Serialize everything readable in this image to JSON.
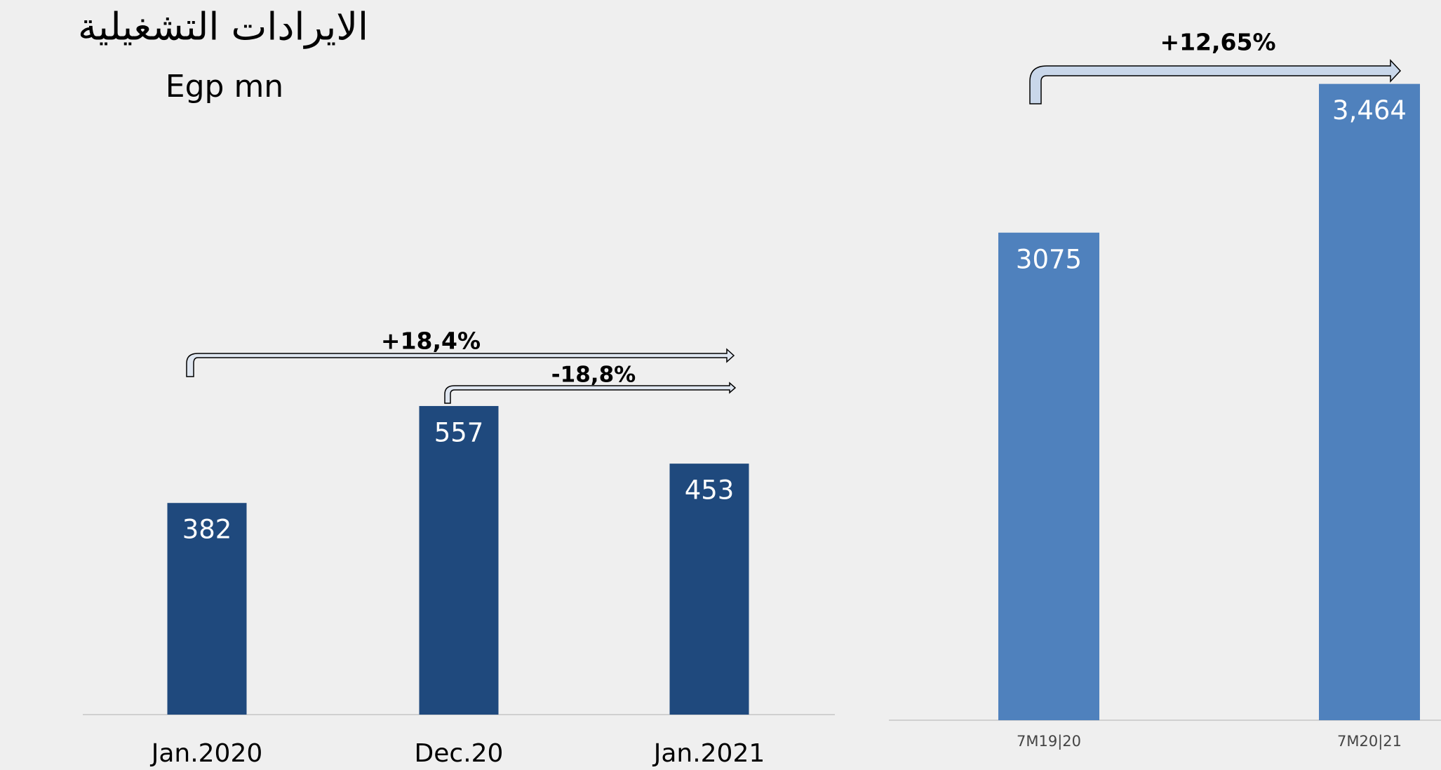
{
  "chart_data": [
    {
      "type": "bar",
      "title": "الايرادات التشغيلية",
      "subtitle": "Egp mn",
      "categories": [
        "Jan.2020",
        "Dec.20",
        "Jan.2021"
      ],
      "values": [
        382,
        557,
        453
      ],
      "color": "#1f497d",
      "ylim": [
        0,
        600
      ],
      "annotations": [
        "+18,4%",
        "-18,8%"
      ]
    },
    {
      "type": "bar",
      "categories": [
        "7M19|20",
        "7M20|21"
      ],
      "values": [
        3075,
        3464
      ],
      "value_labels": [
        "3075",
        "3,464"
      ],
      "color": "#4f81bd",
      "ylim": [
        1800,
        3500
      ],
      "annotations": [
        "+12,65%"
      ]
    }
  ]
}
